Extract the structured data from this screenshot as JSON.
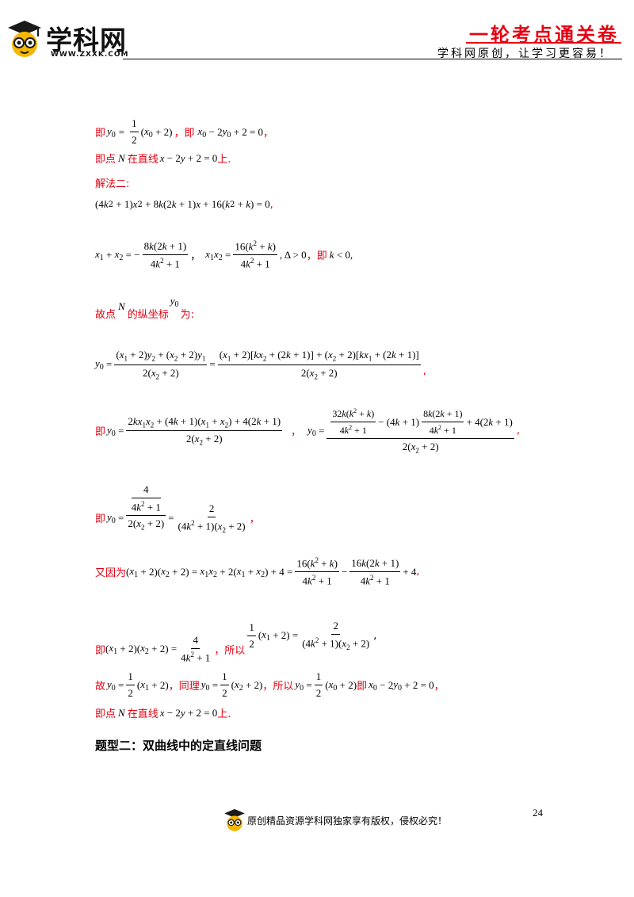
{
  "header": {
    "logo_text": "学科网",
    "logo_url": "WWW.ZXXK.COM",
    "series_title": "一轮考点通关卷",
    "slogan": "学科网原创，让学习更容易！"
  },
  "lines": {
    "l1_a": "即",
    "l1_b": "，即",
    "l1_c": "，",
    "l2_a": "即点",
    "l2_b": "在直线",
    "l2_c": "上.",
    "method2": "解法二:",
    "l4_end": ",",
    "l5_sep": "，",
    "l5_b": "，即",
    "l6_a": "故点",
    "l6_b": "的纵坐标",
    "l6_c": "为:",
    "l8_a": "即",
    "l8_sep": "，",
    "l8_end": ",",
    "l9_a": "即",
    "l9_end": "，",
    "l10_a": "又因为",
    "l10_end": ",",
    "l11_a": "即",
    "l11_b": "，所以",
    "l11_end": ",",
    "l12_a": "故",
    "l12_b": "，同理",
    "l12_c": "，所以",
    "l12_d": "即",
    "l12_end": "，",
    "l13_a": "即点",
    "l13_b": "在直线",
    "l13_c": "上.",
    "section_heading": "题型二：双曲线中的定直线问题"
  },
  "footer": {
    "page_number": "24",
    "copyright": "原创精品资源学科网独家享有版权，侵权必究！"
  },
  "colors": {
    "accent_red": "#e60012",
    "logo_yellow": "#f5b800"
  },
  "icons": {
    "logo": "scholar-owl-icon",
    "footer": "scholar-owl-icon"
  }
}
